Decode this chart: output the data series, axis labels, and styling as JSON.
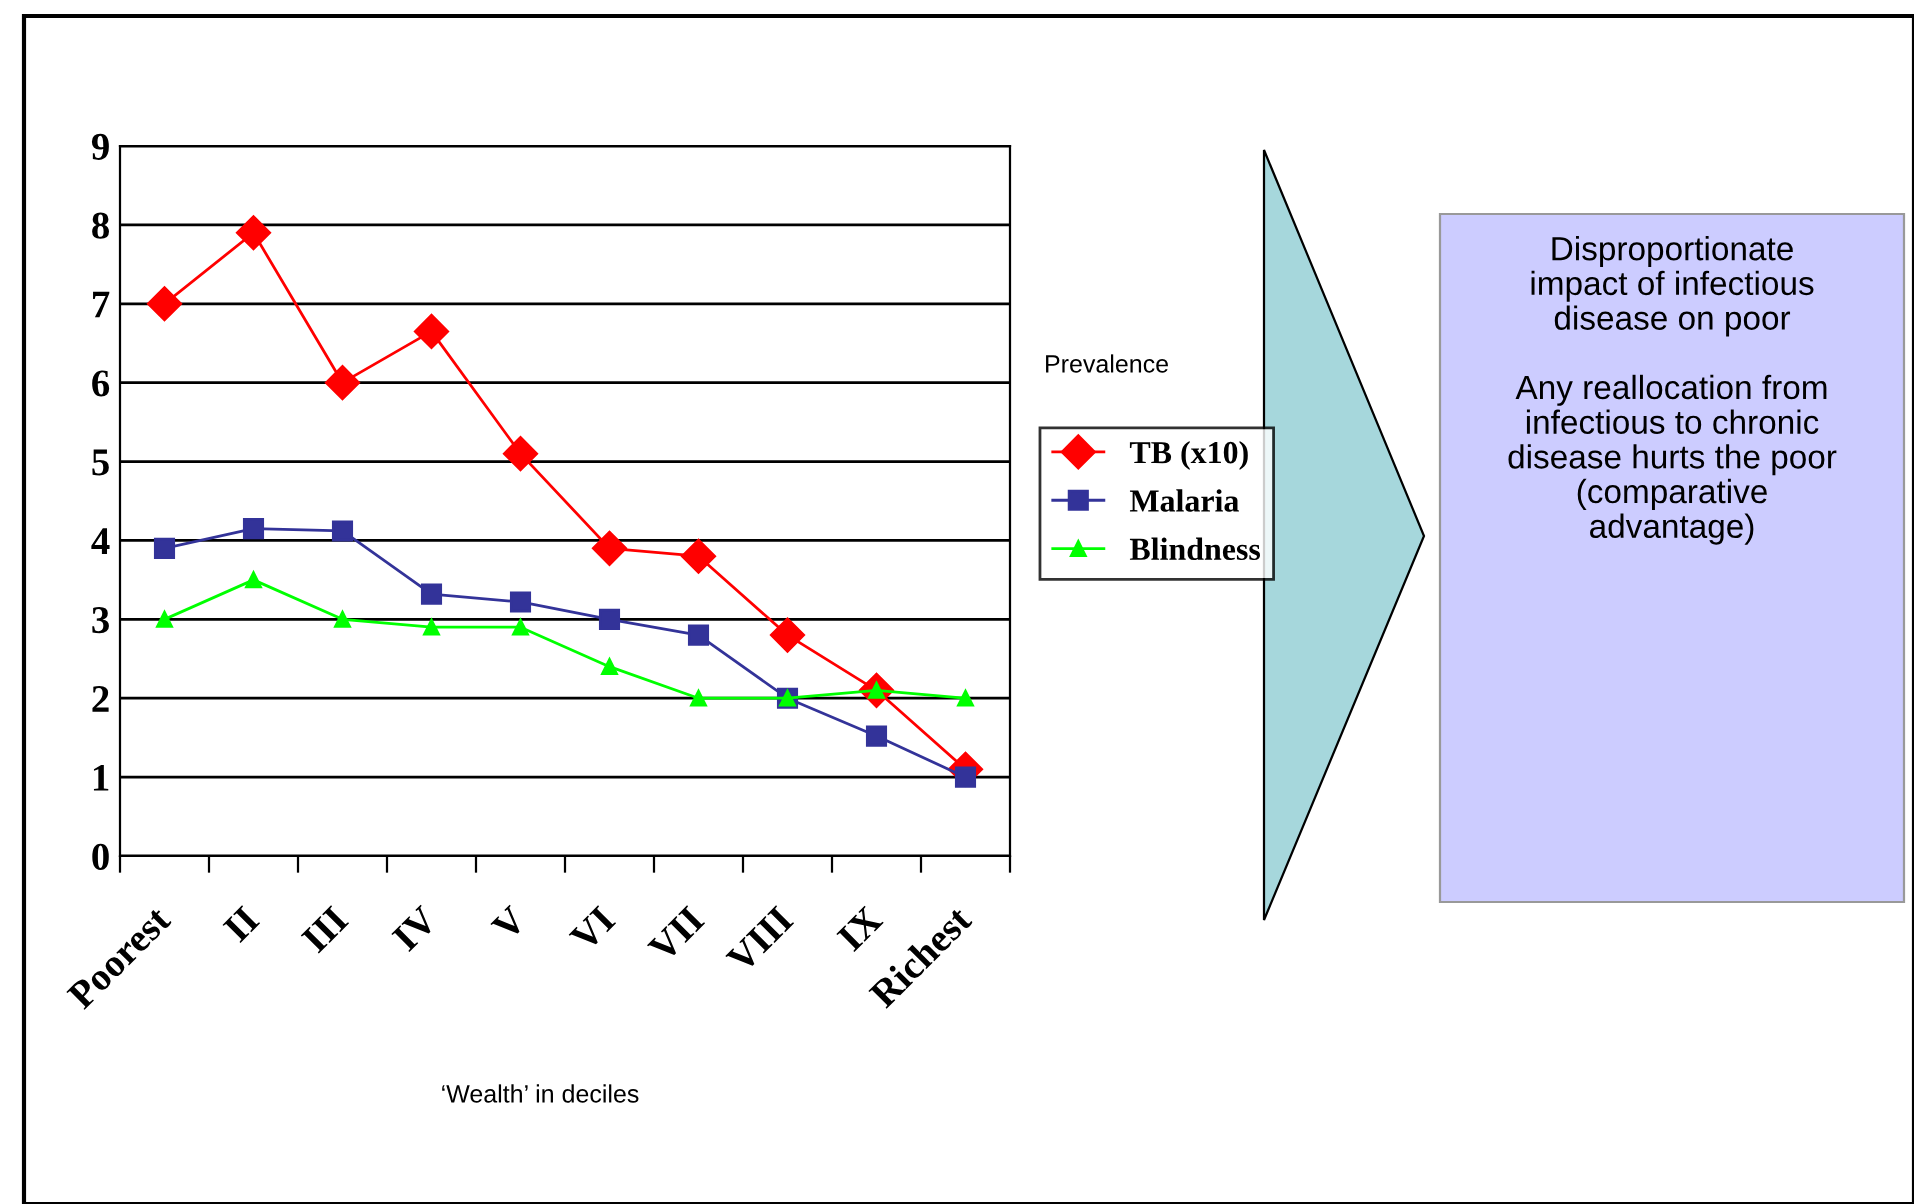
{
  "chart_data": {
    "type": "line",
    "categories": [
      "Poorest",
      "II",
      "III",
      "IV",
      "V",
      "VI",
      "VII",
      "VIII",
      "IX",
      "Richest"
    ],
    "series": [
      {
        "name": "TB (x10)",
        "color": "#ff0000",
        "marker": "diamond",
        "values": [
          7.0,
          7.9,
          6.0,
          6.65,
          5.1,
          3.9,
          3.8,
          2.8,
          2.1,
          1.1
        ]
      },
      {
        "name": "Malaria",
        "color": "#333399",
        "marker": "square",
        "values": [
          3.9,
          4.15,
          4.12,
          3.32,
          3.22,
          3.0,
          2.8,
          2.0,
          1.52,
          1.0
        ]
      },
      {
        "name": "Blindness",
        "color": "#00ff00",
        "marker": "triangle",
        "values": [
          3.0,
          3.5,
          3.0,
          2.9,
          2.9,
          2.4,
          2.0,
          2.0,
          2.1,
          2.0
        ]
      }
    ],
    "xlabel": "‘Wealth’ in deciles",
    "legend_title": "Prevalence",
    "legend": "right",
    "ylim": [
      0,
      9
    ],
    "yticks": [
      0,
      1,
      2,
      3,
      4,
      5,
      6,
      7,
      8,
      9
    ],
    "grid": "y",
    "annotations": [
      "Disproportionate\nimpact of infectious\ndisease on poor\n\nAny reallocation from\ninfectious to chronic\ndisease hurts the poor\n(comparative\nadvantage)"
    ]
  }
}
